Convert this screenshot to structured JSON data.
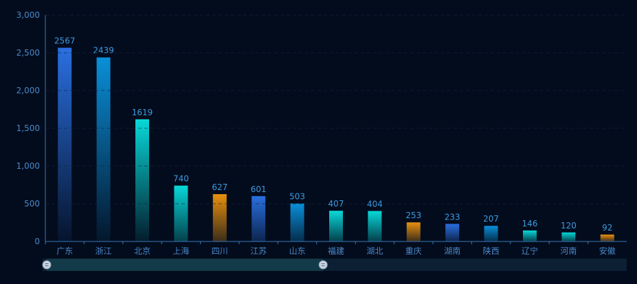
{
  "chart_data": {
    "type": "bar",
    "title": "",
    "xlabel": "",
    "ylabel": "",
    "categories": [
      "广东",
      "浙江",
      "北京",
      "上海",
      "四川",
      "江苏",
      "山东",
      "福建",
      "湖北",
      "重庆",
      "湖南",
      "陕西",
      "辽宁",
      "河南",
      "安徽"
    ],
    "values": [
      2567,
      2439,
      1619,
      740,
      627,
      601,
      503,
      407,
      404,
      253,
      233,
      207,
      146,
      120,
      92
    ],
    "bar_colors": [
      "#2a6fe0",
      "#0a8fd8",
      "#08d8d8",
      "#08d8d8",
      "#e8900f",
      "#2a6fe0",
      "#0a8fd8",
      "#08d8d8",
      "#08d8d8",
      "#e8900f",
      "#2a6fe0",
      "#0a8fd8",
      "#08d8d8",
      "#08d8d8",
      "#e8900f"
    ],
    "ylim": [
      0,
      3000
    ],
    "y_ticks": [
      "0",
      "500",
      "1,000",
      "1,500",
      "2,000",
      "2,500",
      "3,000"
    ],
    "y_tick_values": [
      0,
      500,
      1000,
      1500,
      2000,
      2500,
      3000
    ],
    "grid": true,
    "data_labels": true,
    "label_color": "#3d9be0",
    "zoom_slider": {
      "start": 0,
      "end": 0.48
    }
  }
}
